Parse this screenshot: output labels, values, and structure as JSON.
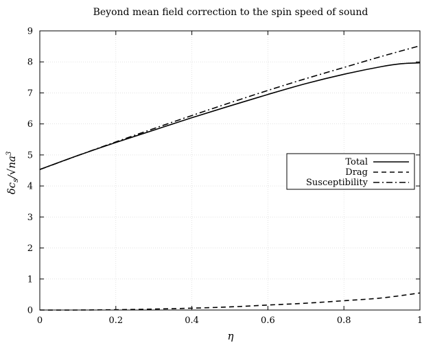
{
  "chart_data": {
    "type": "line",
    "title": "Beyond mean field correction to the spin speed of sound",
    "xlabel": "η",
    "ylabel_main": "δc",
    "ylabel_sub": "s",
    "ylabel_rest": "/√na",
    "ylabel_sup": "3",
    "xlim": [
      0,
      1
    ],
    "ylim": [
      0,
      9
    ],
    "xticks": [
      "0",
      "0.2",
      "0.4",
      "0.6",
      "0.8",
      "1"
    ],
    "xtick_values": [
      0,
      0.2,
      0.4,
      0.6,
      0.8,
      1
    ],
    "yticks": [
      "0",
      "1",
      "2",
      "3",
      "4",
      "5",
      "6",
      "7",
      "8",
      "9"
    ],
    "ytick_values": [
      0,
      1,
      2,
      3,
      4,
      5,
      6,
      7,
      8,
      9
    ],
    "grid": true,
    "legend_position": "right, middle",
    "series": [
      {
        "name": "Total",
        "style": "solid",
        "x": [
          0,
          0.1,
          0.2,
          0.3,
          0.4,
          0.5,
          0.6,
          0.7,
          0.8,
          0.9,
          0.95,
          1.0
        ],
        "y": [
          4.53,
          4.98,
          5.4,
          5.8,
          6.2,
          6.58,
          6.95,
          7.3,
          7.6,
          7.85,
          7.94,
          7.97
        ]
      },
      {
        "name": "Drag",
        "style": "dashed",
        "x": [
          0,
          0.1,
          0.2,
          0.3,
          0.4,
          0.5,
          0.6,
          0.7,
          0.8,
          0.9,
          1.0
        ],
        "y": [
          0.0,
          0.0,
          0.01,
          0.03,
          0.06,
          0.1,
          0.16,
          0.22,
          0.3,
          0.39,
          0.55
        ]
      },
      {
        "name": "Susceptibility",
        "style": "dash-dot",
        "x": [
          0,
          0.1,
          0.2,
          0.3,
          0.4,
          0.5,
          0.6,
          0.7,
          0.8,
          0.9,
          1.0
        ],
        "y": [
          4.53,
          4.98,
          5.42,
          5.85,
          6.27,
          6.68,
          7.08,
          7.46,
          7.82,
          8.18,
          8.52
        ]
      }
    ],
    "colors": {
      "line": "#000000",
      "grid": "#d0d0d0",
      "background": "#ffffff"
    }
  }
}
